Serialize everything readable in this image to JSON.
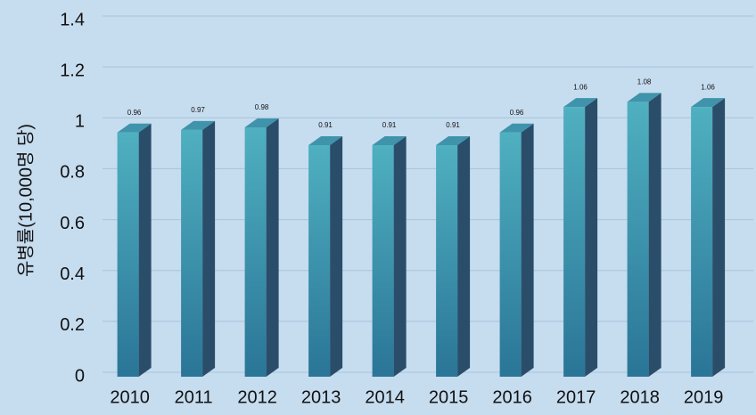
{
  "chart_data": {
    "type": "bar3d",
    "y_label": "유병률(10,000명 당)",
    "categories": [
      "2010",
      "2011",
      "2012",
      "2013",
      "2014",
      "2015",
      "2016",
      "2017",
      "2018",
      "2019"
    ],
    "values": [
      0.96,
      0.97,
      0.98,
      0.91,
      0.91,
      0.91,
      0.96,
      1.06,
      1.08,
      1.06
    ],
    "color": "#3d9db3",
    "ylim": [
      0,
      1.4
    ],
    "yticks": [
      0,
      0.2,
      0.4,
      0.6,
      0.8,
      1,
      1.2,
      1.4
    ],
    "grid": true
  }
}
